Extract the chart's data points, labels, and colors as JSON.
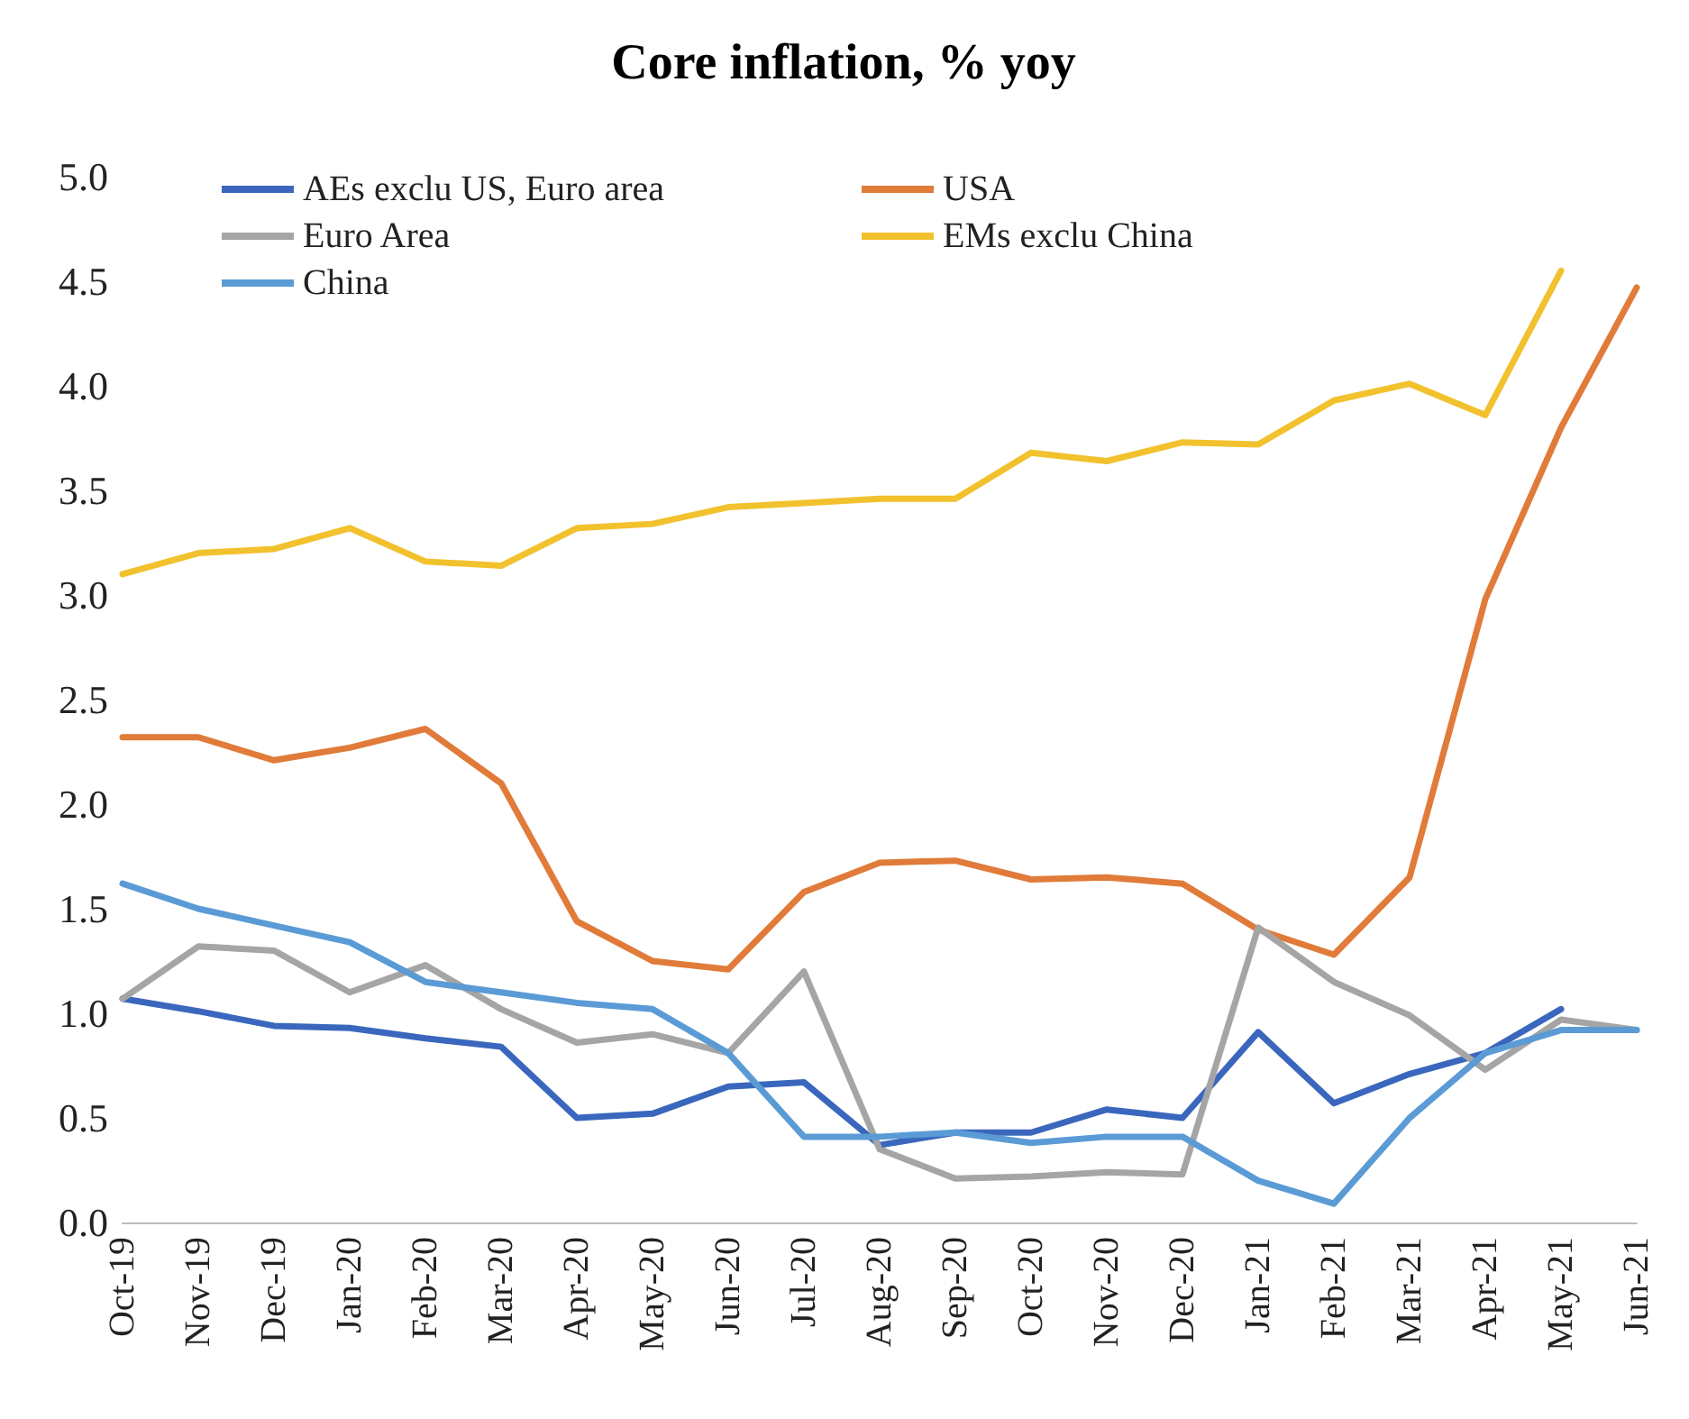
{
  "chart_data": {
    "type": "line",
    "title": "Core inflation, % yoy",
    "categories": [
      "Oct-19",
      "Nov-19",
      "Dec-19",
      "Jan-20",
      "Feb-20",
      "Mar-20",
      "Apr-20",
      "May-20",
      "Jun-20",
      "Jul-20",
      "Aug-20",
      "Sep-20",
      "Oct-20",
      "Nov-20",
      "Dec-20",
      "Jan-21",
      "Feb-21",
      "Mar-21",
      "Apr-21",
      "May-21",
      "Jun-21"
    ],
    "series": [
      {
        "name": "AEs exclu US, Euro area",
        "color": "#3a67bd",
        "values": [
          1.07,
          1.01,
          0.94,
          0.93,
          0.88,
          0.84,
          0.5,
          0.52,
          0.65,
          0.67,
          0.37,
          0.43,
          0.43,
          0.54,
          0.5,
          0.91,
          0.57,
          0.71,
          0.81,
          1.02,
          null
        ]
      },
      {
        "name": "USA",
        "color": "#e07b39",
        "values": [
          2.32,
          2.32,
          2.21,
          2.27,
          2.36,
          2.1,
          1.44,
          1.25,
          1.21,
          1.58,
          1.72,
          1.73,
          1.64,
          1.65,
          1.62,
          1.4,
          1.28,
          1.65,
          2.98,
          3.8,
          4.47
        ]
      },
      {
        "name": "Euro Area",
        "color": "#a5a5a5",
        "values": [
          1.07,
          1.32,
          1.3,
          1.1,
          1.23,
          1.02,
          0.86,
          0.9,
          0.81,
          1.2,
          0.35,
          0.21,
          0.22,
          0.24,
          0.23,
          1.41,
          1.15,
          0.99,
          0.73,
          0.97,
          0.92
        ]
      },
      {
        "name": "EMs exclu China",
        "color": "#f2c12e",
        "values": [
          3.1,
          3.2,
          3.22,
          3.32,
          3.16,
          3.14,
          3.32,
          3.34,
          3.42,
          3.44,
          3.46,
          3.46,
          3.68,
          3.64,
          3.73,
          3.72,
          3.93,
          4.01,
          3.86,
          4.55,
          null
        ]
      },
      {
        "name": "China",
        "color": "#5b9bd5",
        "values": [
          1.62,
          1.5,
          1.42,
          1.34,
          1.15,
          1.1,
          1.05,
          1.02,
          0.81,
          0.41,
          0.41,
          0.43,
          0.38,
          0.41,
          0.41,
          0.2,
          0.09,
          0.5,
          0.81,
          0.92,
          0.92
        ]
      }
    ],
    "ylim": [
      0,
      5
    ],
    "yticks": [
      {
        "value": 0,
        "label": "0.0"
      },
      {
        "value": 0.5,
        "label": "0.5"
      },
      {
        "value": 1,
        "label": "1.0"
      },
      {
        "value": 1.5,
        "label": "1.5"
      },
      {
        "value": 2,
        "label": "2.0"
      },
      {
        "value": 2.5,
        "label": "2.5"
      },
      {
        "value": 3,
        "label": "3.0"
      },
      {
        "value": 3.5,
        "label": "3.5"
      },
      {
        "value": 4,
        "label": "4.0"
      },
      {
        "value": 4.5,
        "label": "4.5"
      },
      {
        "value": 5,
        "label": "5.0"
      }
    ],
    "grid": false,
    "legend": "top left",
    "marker": "none",
    "line_style": "solid"
  }
}
